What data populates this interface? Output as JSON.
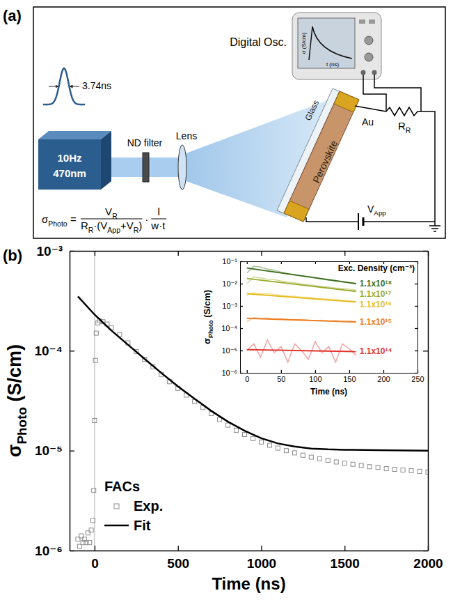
{
  "diagram": {
    "panel_label": "(a)",
    "pulse_width": "3.74ns",
    "laser": [
      "10Hz",
      "470nm"
    ],
    "nd_filter": "ND filter",
    "lens": "Lens",
    "oscilloscope": {
      "label": "Digital Osc.",
      "y_label": "σ (S/cm)",
      "x_label": "t (ns)"
    },
    "glass": "Glass",
    "electrode": "Au",
    "sample": "Perovskite",
    "resistor": [
      {
        "base": "R",
        "sub": "R"
      }
    ],
    "voltage": [
      {
        "base": "V",
        "sub": "App"
      }
    ],
    "formula": {
      "lhs": [
        {
          "base": "σ",
          "sub": "Photo"
        },
        {
          "base": " ="
        }
      ],
      "num1": [
        {
          "base": "V",
          "sub": "R"
        }
      ],
      "den1": [
        {
          "base": "R",
          "sub": "R"
        },
        {
          "base": "·(V",
          "sub": "App"
        },
        {
          "base": "+V",
          "sub": "R"
        },
        {
          "base": ")"
        }
      ],
      "dot": "·",
      "num2": [
        {
          "base": "l"
        }
      ],
      "den2": [
        {
          "base": "w·t"
        }
      ]
    }
  },
  "chart_data": [
    {
      "type": "scatter",
      "panel_label": "(b)",
      "x_label": "Time (ns)",
      "y_label": [
        {
          "base": "σ",
          "sub": "Photo"
        },
        {
          "base": " (S/cm)"
        }
      ],
      "legend_title": "FACs",
      "legend": "lower left",
      "log": "y",
      "xlim": [
        -150,
        2000
      ],
      "xticks": [
        0,
        500,
        1000,
        1500,
        2000
      ],
      "ylim": [
        1e-06,
        0.001
      ],
      "yticks": [
        {
          "value": 1e-06,
          "label": "10⁻⁶"
        },
        {
          "value": 1e-05,
          "label": "10⁻⁵"
        },
        {
          "value": 0.0001,
          "label": "10⁻⁴"
        },
        {
          "value": 0.001,
          "label": "10⁻³"
        }
      ],
      "reference_line_x": 0,
      "series": [
        {
          "name": "Exp.",
          "type": "scatter",
          "marker": "square",
          "color": "#8c8c8c",
          "x": [
            -100,
            -90,
            -80,
            -70,
            -60,
            -50,
            -40,
            -30,
            -20,
            -10,
            -5,
            0,
            5,
            10,
            20,
            30,
            50,
            75,
            100,
            150,
            200,
            250,
            300,
            350,
            400,
            450,
            500,
            550,
            600,
            650,
            700,
            750,
            800,
            850,
            900,
            950,
            1000,
            1050,
            1100,
            1150,
            1200,
            1250,
            1300,
            1350,
            1400,
            1450,
            1500,
            1550,
            1600,
            1650,
            1700,
            1750,
            1800,
            1850,
            1900,
            1950,
            2000
          ],
          "values": [
            1.3e-06,
            1.1e-06,
            1.4e-06,
            1.2e-06,
            1.3e-06,
            1.2e-06,
            1.5e-06,
            1.2e-06,
            1.6e-06,
            2e-06,
            4e-06,
            2e-05,
            8e-05,
            0.00015,
            0.00019,
            0.0002,
            0.000195,
            0.000185,
            0.00017,
            0.000145,
            0.00012,
            9.8e-05,
            8.2e-05,
            6.9e-05,
            5.8e-05,
            4.9e-05,
            4.2e-05,
            3.6e-05,
            3.1e-05,
            2.7e-05,
            2.35e-05,
            2.05e-05,
            1.8e-05,
            1.6e-05,
            1.45e-05,
            1.32e-05,
            1.22e-05,
            1.13e-05,
            1.06e-05,
            1e-05,
            9.5e-06,
            9e-06,
            8.6e-06,
            8.3e-06,
            8e-06,
            7.7e-06,
            7.5e-06,
            7.3e-06,
            7.1e-06,
            6.9e-06,
            6.8e-06,
            6.6e-06,
            6.5e-06,
            6.4e-06,
            6.3e-06,
            6.2e-06,
            6.1e-06
          ]
        },
        {
          "name": "Fit",
          "type": "line",
          "line_style": "solid",
          "color": "#000000",
          "x": [
            -100,
            0,
            100,
            200,
            300,
            400,
            500,
            600,
            700,
            800,
            900,
            1000,
            1100,
            1200,
            1300,
            1400,
            1500,
            1700,
            2000
          ],
          "values": [
            0.00035,
            0.00023,
            0.00016,
            0.000115,
            8.3e-05,
            6e-05,
            4.4e-05,
            3.3e-05,
            2.5e-05,
            1.95e-05,
            1.58e-05,
            1.33e-05,
            1.18e-05,
            1.1e-05,
            1.05e-05,
            1.03e-05,
            1.02e-05,
            1.01e-05,
            1e-05
          ]
        }
      ]
    },
    {
      "type": "line",
      "x_label": "Time (ns)",
      "y_label": [
        {
          "base": "σ",
          "sub": "Photo"
        },
        {
          "base": " (S/cm)"
        }
      ],
      "legend_title": "Exc. Density (cm⁻³)",
      "legend": "right",
      "log": "y",
      "xlim": [
        -10,
        250
      ],
      "xticks": [
        0,
        50,
        100,
        150,
        200,
        250
      ],
      "ylim": [
        1e-06,
        0.1
      ],
      "yticks": [
        {
          "value": 1e-06,
          "label": "10⁻⁶"
        },
        {
          "value": 1e-05,
          "label": "10⁻⁵"
        },
        {
          "value": 0.0001,
          "label": "10⁻⁴"
        },
        {
          "value": 0.001,
          "label": "10⁻³"
        },
        {
          "value": 0.01,
          "label": "10⁻²"
        },
        {
          "value": 0.1,
          "label": "10⁻¹"
        }
      ],
      "x": [
        0,
        10,
        20,
        30,
        40,
        50,
        60,
        70,
        80,
        90,
        100,
        110,
        120,
        130,
        140,
        150,
        160
      ],
      "series": [
        {
          "name": "1.1x10¹⁸",
          "color": "#3d6e1e",
          "line_style": "solid",
          "values": [
            0.03,
            0.06,
            0.055,
            0.045,
            0.04,
            0.033,
            0.028,
            0.025,
            0.022,
            0.02,
            0.018,
            0.016,
            0.014,
            0.013,
            0.012,
            0.011,
            0.01
          ],
          "fit_x": [
            0,
            160
          ],
          "fit": [
            0.05,
            0.01
          ]
        },
        {
          "name": "1.1x10¹⁷",
          "color": "#9aab2c",
          "line_style": "solid",
          "values": [
            0.01,
            0.02,
            0.018,
            0.016,
            0.015,
            0.013,
            0.012,
            0.011,
            0.0095,
            0.009,
            0.0082,
            0.0075,
            0.007,
            0.0064,
            0.006,
            0.0056,
            0.0052
          ],
          "fit_x": [
            0,
            160
          ],
          "fit": [
            0.017,
            0.0045
          ]
        },
        {
          "name": "1.1x10¹⁶",
          "color": "#e5bd1f",
          "line_style": "solid",
          "values": [
            0.003,
            0.004,
            0.0035,
            0.0036,
            0.0032,
            0.003,
            0.0028,
            0.0027,
            0.0025,
            0.0024,
            0.0022,
            0.0021,
            0.002,
            0.0019,
            0.0018,
            0.0017,
            0.0016
          ],
          "fit_x": [
            0,
            160
          ],
          "fit": [
            0.0035,
            0.0015
          ]
        },
        {
          "name": "1.1x10¹⁵",
          "color": "#ee7d22",
          "line_style": "solid",
          "values": [
            0.0002,
            0.0003,
            0.00028,
            0.00029,
            0.00026,
            0.00027,
            0.00025,
            0.00024,
            0.00025,
            0.00023,
            0.00022,
            0.00023,
            0.00021,
            0.00022,
            0.0002,
            0.00021,
            0.0002
          ],
          "fit_x": [
            0,
            160
          ],
          "fit": [
            0.00028,
            0.00019
          ]
        },
        {
          "name": "1.1x10¹⁴",
          "color": "#e2342f",
          "line_style": "solid",
          "values": [
            1e-05,
            2e-05,
            5e-06,
            3e-05,
            8e-06,
            1.5e-05,
            3e-06,
            2e-05,
            1e-05,
            4e-06,
            2.5e-05,
            8e-06,
            1.5e-05,
            3e-06,
            2e-05,
            1.2e-05,
            6e-06
          ],
          "fit_x": [
            0,
            160
          ],
          "fit": [
            1.1e-05,
            9e-06
          ]
        }
      ]
    }
  ]
}
